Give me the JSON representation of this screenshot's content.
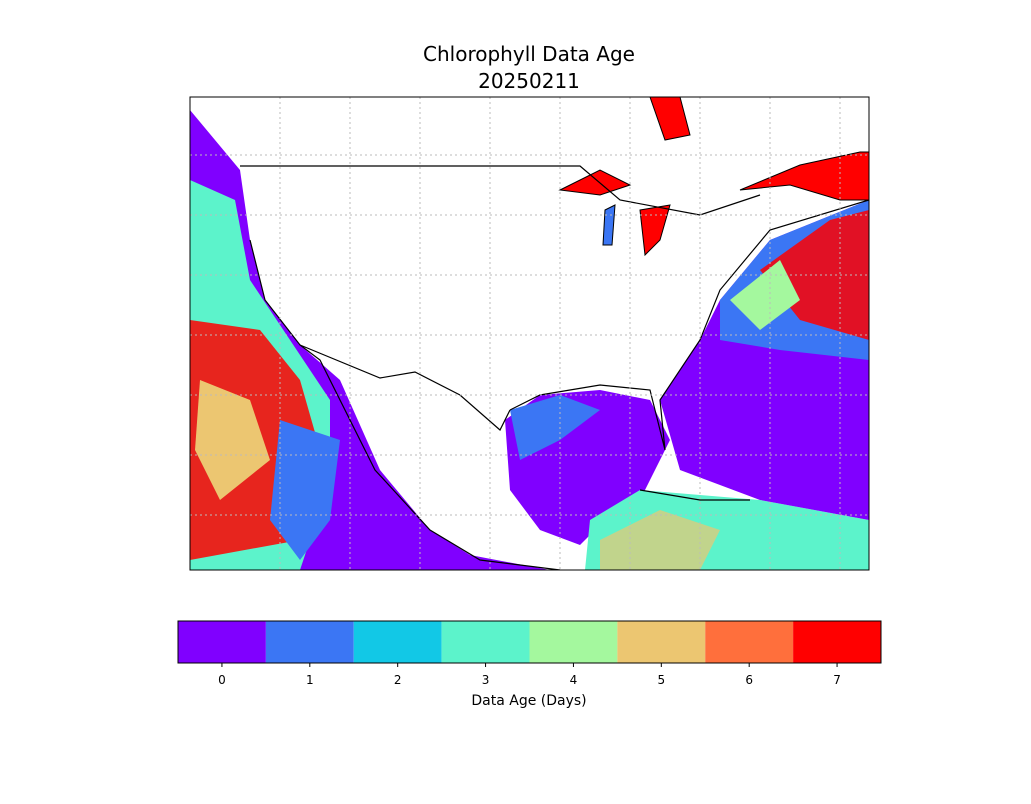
{
  "title": "Chlorophyll Data Age",
  "subtitle": "20250211",
  "colorbar": {
    "label": "Data Age (Days)",
    "lim": [
      -0.5,
      7.5
    ],
    "ticks": [
      0,
      1,
      2,
      3,
      4,
      5,
      6,
      7
    ],
    "colors": [
      "#8000ff",
      "#3b76f4",
      "#12c8e6",
      "#5cf3cb",
      "#a4f89e",
      "#ecc671",
      "#ff6f3c",
      "#ff0000"
    ]
  }
}
